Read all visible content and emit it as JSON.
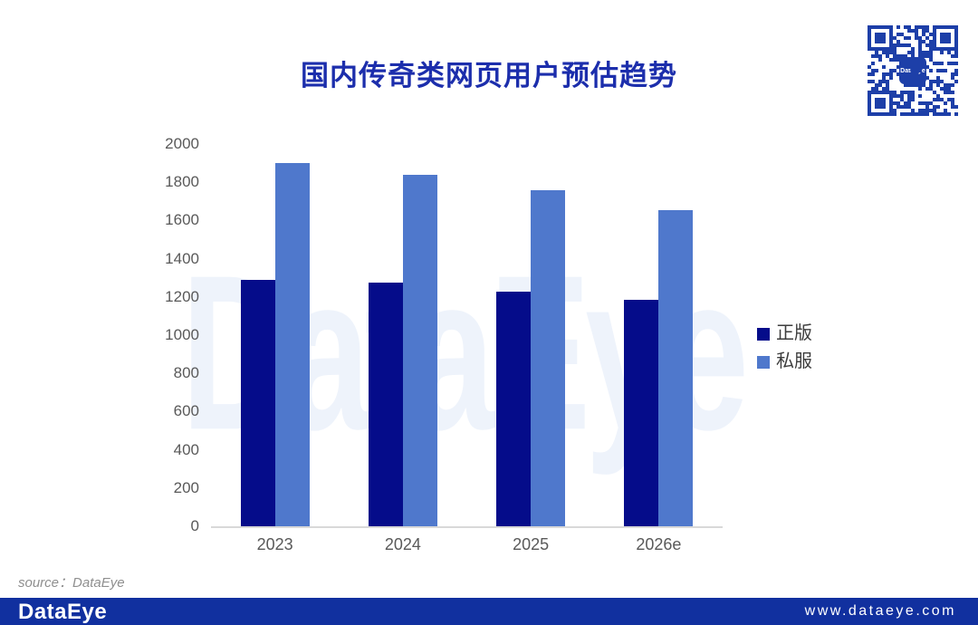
{
  "title": "国内传奇类网页用户预估趋势",
  "watermark": "DataEye",
  "source_note": "source：DataEye",
  "footer": {
    "logo": "DataEye",
    "website": "www.dataeye.com",
    "bar_color": "#11309f"
  },
  "qr": {
    "label": "DataEye",
    "color": "#1d3fa8"
  },
  "colors": {
    "title": "#1c2eac",
    "axis_text": "#595959",
    "axis_line": "#d9d9d9",
    "legend_text": "#3d3d3d",
    "watermark": "#eef3fb"
  },
  "chart_data": {
    "type": "bar",
    "title": "国内传奇类网页用户预估趋势",
    "categories": [
      "2023",
      "2024",
      "2025",
      "2026e"
    ],
    "series": [
      {
        "name": "正版",
        "color": "#050c8a",
        "values": [
          1290,
          1275,
          1230,
          1185
        ]
      },
      {
        "name": "私服",
        "color": "#4f78cc",
        "values": [
          1900,
          1840,
          1760,
          1655
        ]
      }
    ],
    "xlabel": "",
    "ylabel": "",
    "ylim": [
      0,
      2000
    ],
    "ytick_step": 200,
    "grid": false,
    "legend_position": "right"
  }
}
